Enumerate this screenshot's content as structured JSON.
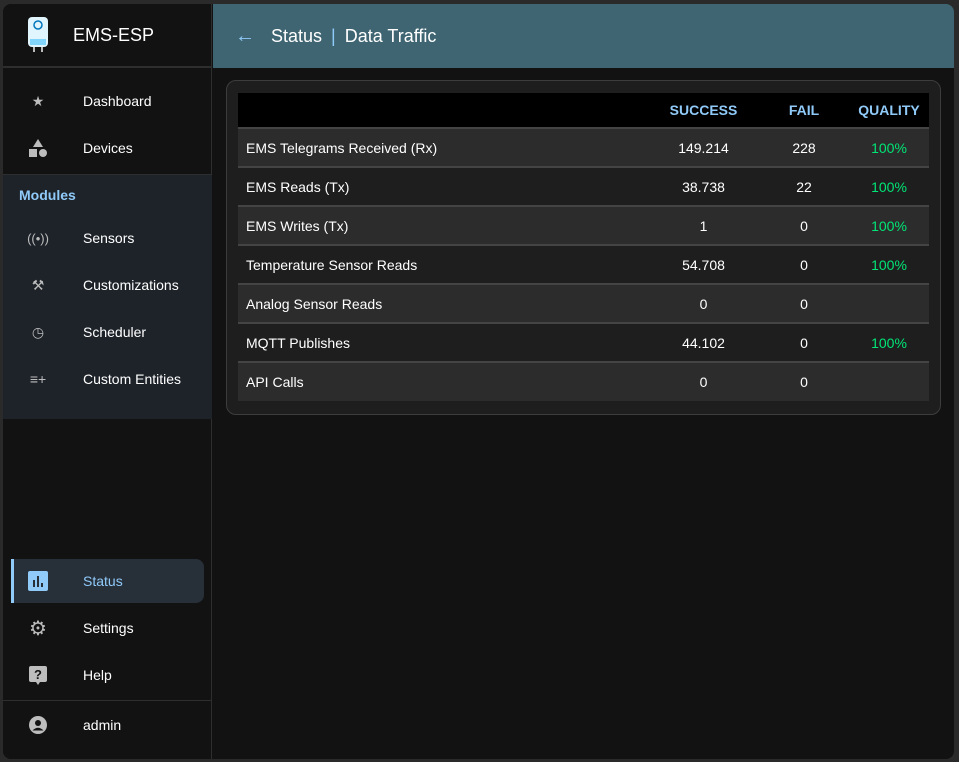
{
  "app": {
    "title": "EMS-ESP"
  },
  "header": {
    "title": "Status",
    "subtitle": "Data Traffic"
  },
  "sidebar": {
    "items": [
      {
        "label": "Dashboard",
        "icon": "star-icon"
      },
      {
        "label": "Devices",
        "icon": "shapes-icon"
      }
    ],
    "modules_title": "Modules",
    "modules": [
      {
        "label": "Sensors",
        "icon": "sensors-icon"
      },
      {
        "label": "Customizations",
        "icon": "build-icon"
      },
      {
        "label": "Scheduler",
        "icon": "more-time-icon"
      },
      {
        "label": "Custom Entities",
        "icon": "playlist-add-icon"
      }
    ],
    "bottom": [
      {
        "label": "Status",
        "icon": "chart-icon",
        "active": true
      },
      {
        "label": "Settings",
        "icon": "gear-icon"
      },
      {
        "label": "Help",
        "icon": "help-icon"
      }
    ],
    "user": "admin"
  },
  "colors": {
    "accent": "#90caf9",
    "quality": "#00e676",
    "header": "#3f6573"
  },
  "table": {
    "headers": [
      "",
      "SUCCESS",
      "FAIL",
      "QUALITY"
    ],
    "rows": [
      {
        "name": "EMS Telegrams Received (Rx)",
        "success": "149.214",
        "fail": "228",
        "quality": "100%"
      },
      {
        "name": "EMS Reads (Tx)",
        "success": "38.738",
        "fail": "22",
        "quality": "100%"
      },
      {
        "name": "EMS Writes (Tx)",
        "success": "1",
        "fail": "0",
        "quality": "100%"
      },
      {
        "name": "Temperature Sensor Reads",
        "success": "54.708",
        "fail": "0",
        "quality": "100%"
      },
      {
        "name": "Analog Sensor Reads",
        "success": "0",
        "fail": "0",
        "quality": ""
      },
      {
        "name": "MQTT Publishes",
        "success": "44.102",
        "fail": "0",
        "quality": "100%"
      },
      {
        "name": "API Calls",
        "success": "0",
        "fail": "0",
        "quality": ""
      }
    ]
  }
}
